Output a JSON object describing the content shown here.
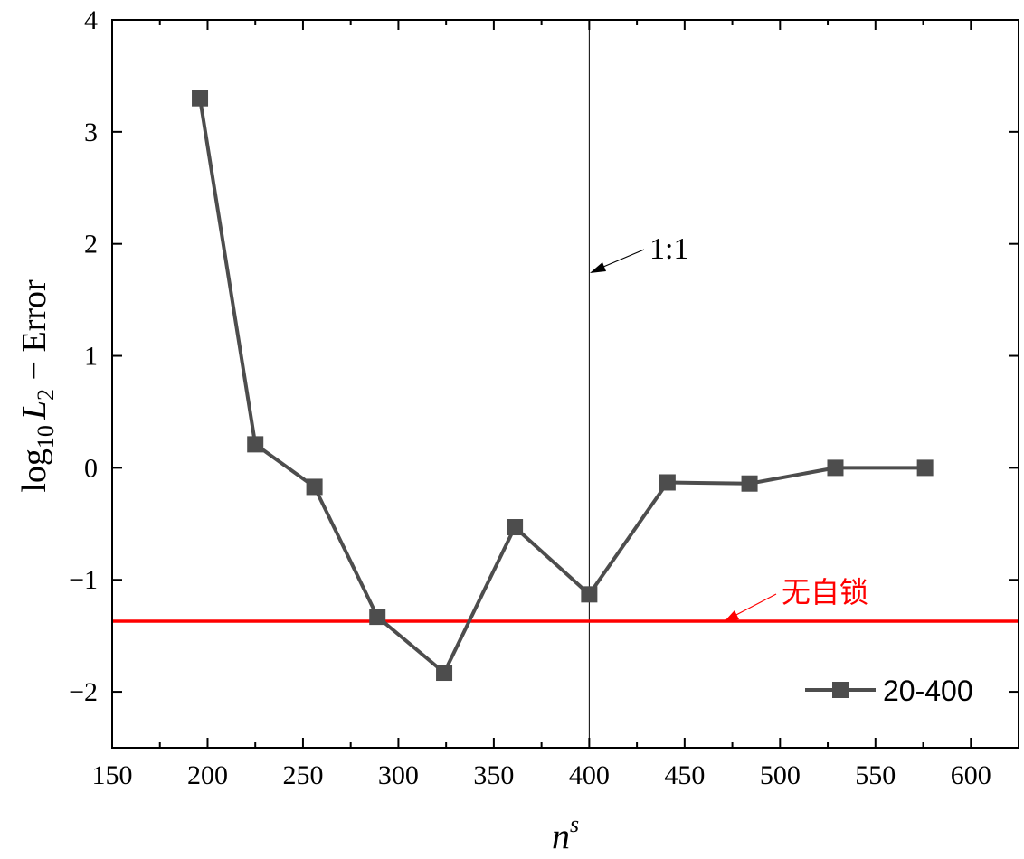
{
  "chart_data": {
    "type": "line",
    "x_label": {
      "base": "n",
      "superscript": "s"
    },
    "y_label": {
      "prefix": "log",
      "prefix_subscript": "10",
      "var": "L",
      "var_subscript": "2",
      "suffix": " − Error"
    },
    "xlim": [
      150,
      625
    ],
    "ylim": [
      -2.5,
      4
    ],
    "x_ticks": [
      150,
      200,
      250,
      300,
      350,
      400,
      450,
      500,
      550,
      600
    ],
    "y_ticks": [
      -2,
      -1,
      0,
      1,
      2,
      3,
      4
    ],
    "series": [
      {
        "name": "20-400",
        "color": "#4d4d4d",
        "marker": "square",
        "x": [
          196,
          225,
          256,
          289,
          324,
          361,
          400,
          441,
          484,
          529,
          576
        ],
        "y": [
          3.3,
          0.21,
          -0.17,
          -1.33,
          -1.83,
          -0.53,
          -1.13,
          -0.13,
          -0.14,
          0.0,
          0.0
        ]
      }
    ],
    "reference_lines": [
      {
        "orientation": "horizontal",
        "value": -1.37,
        "color": "#ff0000",
        "label": "无自锁"
      },
      {
        "orientation": "vertical",
        "value": 400,
        "color": "#000000",
        "label": "1:1"
      }
    ],
    "legend_position": "bottom-right",
    "grid": false
  }
}
